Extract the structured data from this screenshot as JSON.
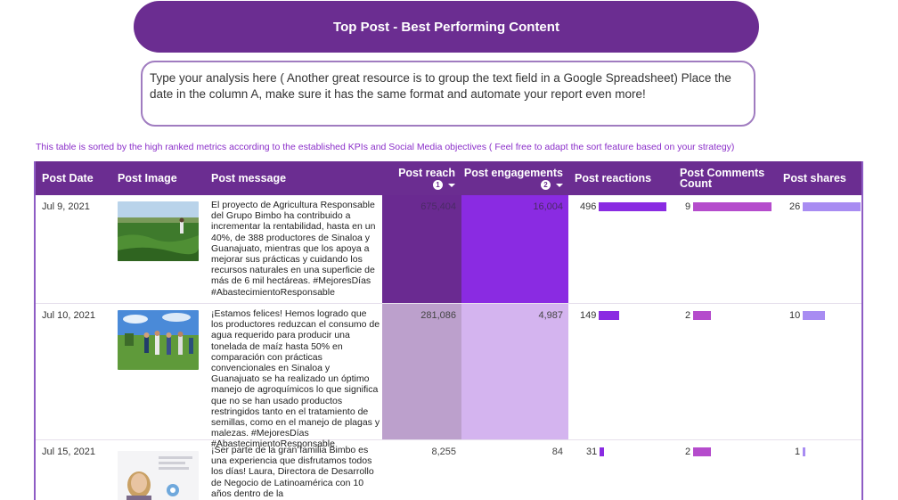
{
  "header": {
    "title": "Top Post - Best Performing Content"
  },
  "analysis_text": "Type your analysis here ( Another great resource is to group the text field in a Google Spreadsheet) Place the date in the column A, make sure it has the same format and automate your report even more!",
  "sort_note": "This table is sorted by the high ranked metrics according to the established KPIs and Social Media objectives ( Feel free to adapt the sort feature based on your strategy)",
  "columns": {
    "date": "Post Date",
    "image": "Post Image",
    "message": "Post message",
    "reach": "Post reach",
    "reach_rank": "1",
    "engagements": "Post engagements",
    "engagements_rank": "2",
    "reactions": "Post reactions",
    "comments_line1": "Post Comments",
    "comments_line2": "Count",
    "shares": "Post shares"
  },
  "colors": {
    "header_bg": "#6b2d91",
    "reach_high": "#6a2a91",
    "reach_mid": "#bca0cc",
    "engagement_high": "#8a2be2",
    "engagement_mid": "#d4b4ef",
    "reactions_bar": "#8a2be2",
    "comments_bar": "#b54ccc",
    "shares_bar": "#a88cf2"
  },
  "rows": [
    {
      "date": "Jul 9, 2021",
      "image_icon": "crop-field-photo",
      "message": "El proyecto de Agricultura Responsable del Grupo Bimbo ha contribuido a incrementar la rentabilidad, hasta en un 40%, de 388 productores de Sinaloa y Guanajuato, mientras que los apoya a mejorar sus prácticas y cuidando los recursos naturales en una superficie de más de 6 mil hectáreas. #MejoresDías #AbastecimientoResponsable",
      "reach": "675,404",
      "engagements": "16,004",
      "reactions": "496",
      "comments": "9",
      "shares": "26"
    },
    {
      "date": "Jul 10, 2021",
      "image_icon": "farmers-group-photo",
      "message": "¡Estamos felices! Hemos logrado que los productores reduzcan el consumo de agua requerido para producir una tonelada de maíz hasta 50% en comparación con prácticas convencionales en Sinaloa y Guanajuato se ha realizado un óptimo manejo de agroquímicos lo que significa que no se han usado productos restringidos tanto en el tratamiento de semillas, como en el manejo de plagas y malezas. #MejoresDías #AbastecimientoResponsable",
      "reach": "281,086",
      "engagements": "4,987",
      "reactions": "149",
      "comments": "2",
      "shares": "10"
    },
    {
      "date": "Jul 15, 2021",
      "image_icon": "woman-portrait-photo",
      "message": "¡Ser parte de la gran familia Bimbo es una experiencia que disfrutamos todos los días! Laura, Directora de Desarrollo de Negocio de Latinoamérica con 10 años dentro de la",
      "reach": "8,255",
      "engagements": "84",
      "reactions": "31",
      "comments": "2",
      "shares": "1"
    }
  ]
}
